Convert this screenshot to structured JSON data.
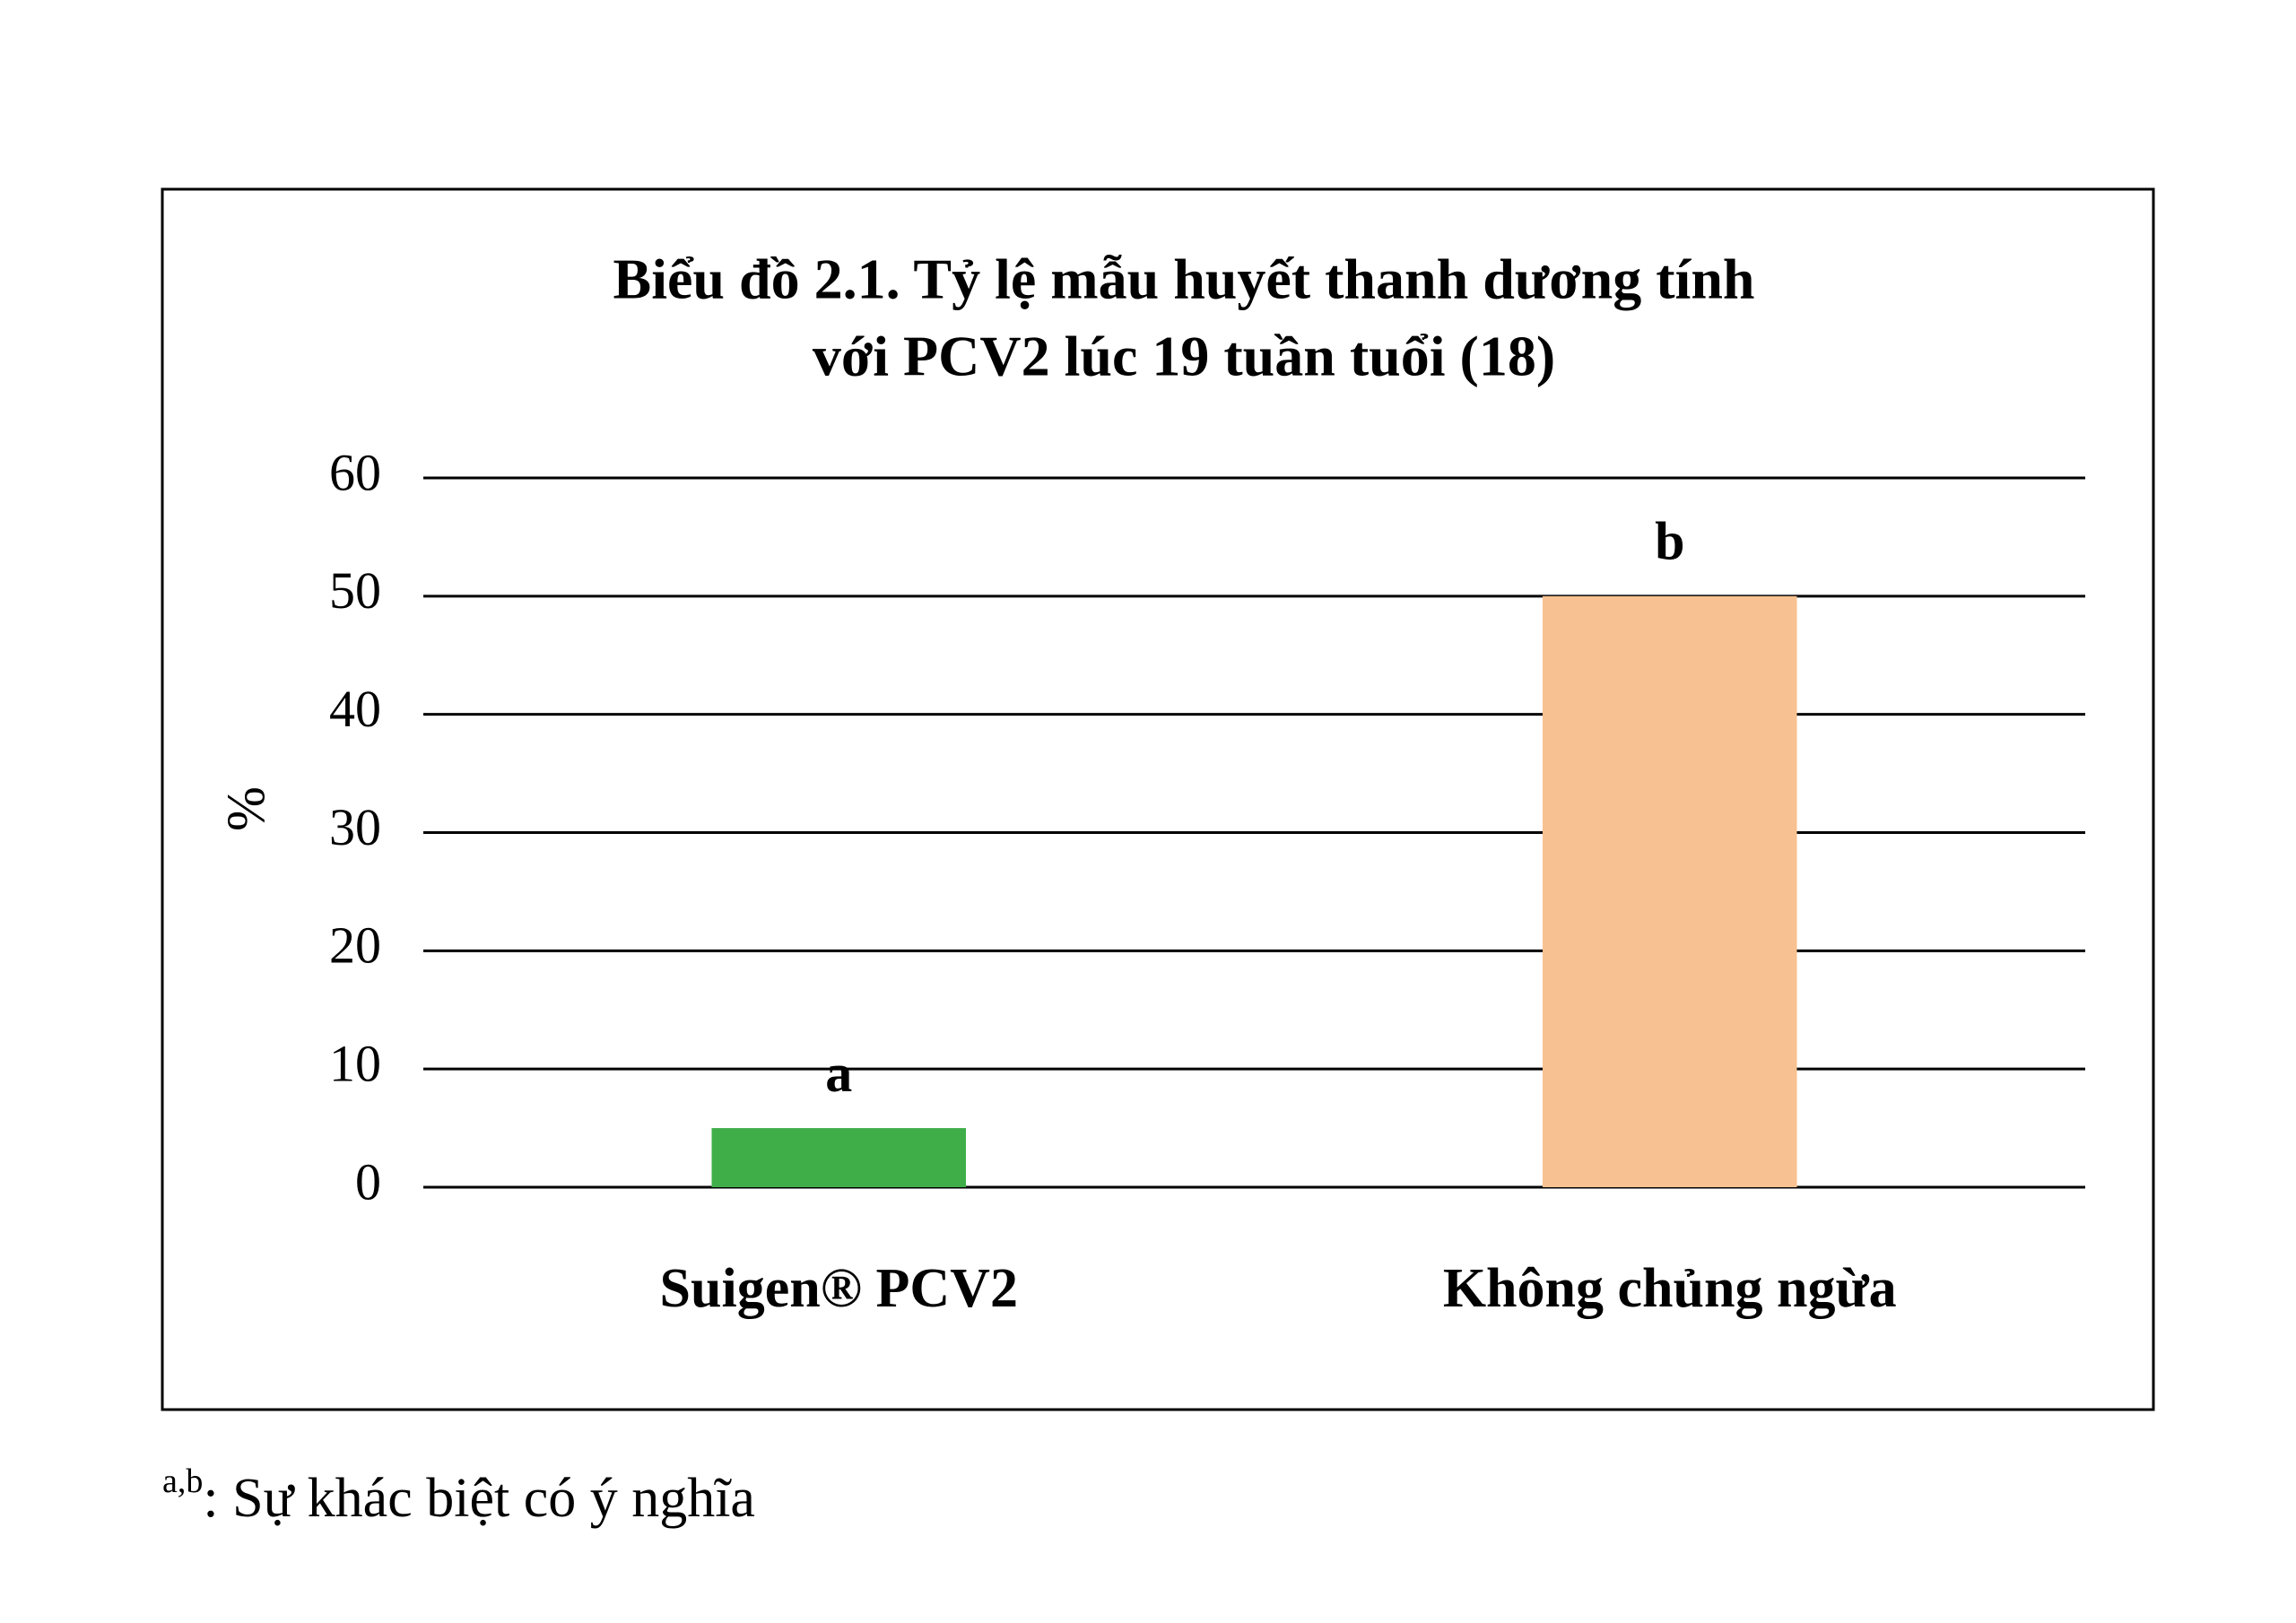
{
  "chart_data": {
    "type": "bar",
    "title": [
      "Biểu đồ 2.1. Tỷ lệ mẫu huyết thanh dương tính",
      "với PCV2 lúc 19 tuần tuổi (18)"
    ],
    "y_label": "%",
    "categories": [
      "Suigen® PCV2",
      "Không chủng ngừa"
    ],
    "values": [
      5,
      50
    ],
    "colors": [
      "#3fae49",
      "#f8c191"
    ],
    "significance_labels": [
      "a",
      "b"
    ],
    "ylim": [
      0,
      60
    ],
    "yticks": [
      0,
      10,
      20,
      30,
      40,
      50,
      60
    ],
    "grid": true
  },
  "footnote": {
    "marker": "a,b",
    "text": ": Sự khác biệt có ý nghĩa"
  }
}
